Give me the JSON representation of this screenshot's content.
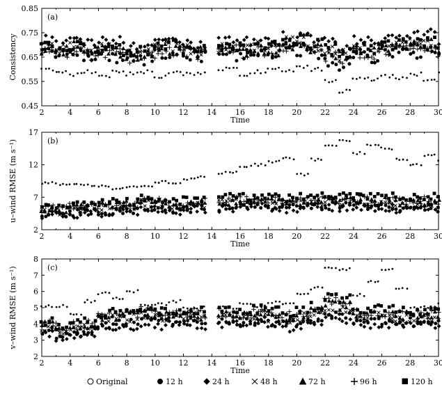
{
  "legend": [
    {
      "label": "Original",
      "marker": "open-circle"
    },
    {
      "label": "12 h",
      "marker": "filled-circle"
    },
    {
      "label": "24 h",
      "marker": "diamond"
    },
    {
      "label": "48 h",
      "marker": "x"
    },
    {
      "label": "72 h",
      "marker": "triangle"
    },
    {
      "label": "96 h",
      "marker": "plus"
    },
    {
      "label": "120 h",
      "marker": "square"
    }
  ],
  "chart_data": [
    {
      "type": "scatter",
      "panel": "(a)",
      "xlabel": "Time",
      "ylabel": "Consistency",
      "xlim": [
        2,
        30
      ],
      "ylim": [
        0.45,
        0.85
      ],
      "xticks": [
        2,
        4,
        6,
        8,
        10,
        12,
        14,
        16,
        18,
        20,
        22,
        24,
        26,
        28,
        30
      ],
      "yticks": [
        0.45,
        0.55,
        0.65,
        0.75,
        0.85
      ],
      "ytick_labels": [
        "0.45",
        "0.55",
        "0.65",
        "0.75",
        "0.85"
      ],
      "gap": [
        13.5,
        14.5
      ],
      "series_levels": {
        "original": [
          0.6,
          0.59,
          0.58,
          0.59,
          0.57,
          0.59,
          0.58,
          0.59,
          0.57,
          0.59,
          0.58,
          0.58,
          0.59,
          0.6,
          0.58,
          0.59,
          0.6,
          0.59,
          0.61,
          0.6,
          0.55,
          0.51,
          0.56,
          0.56,
          0.57,
          0.56,
          0.58,
          0.56,
          0.58
        ],
        "h12": [
          0.67,
          0.66,
          0.67,
          0.65,
          0.66,
          0.65,
          0.64,
          0.64,
          0.66,
          0.67,
          0.65,
          0.65,
          0.66,
          0.66,
          0.66,
          0.66,
          0.67,
          0.69,
          0.68,
          0.66,
          0.63,
          0.62,
          0.66,
          0.65,
          0.67,
          0.67,
          0.67,
          0.68,
          0.67
        ],
        "h24": [
          0.72,
          0.71,
          0.72,
          0.71,
          0.72,
          0.71,
          0.7,
          0.7,
          0.71,
          0.72,
          0.71,
          0.7,
          0.71,
          0.73,
          0.72,
          0.72,
          0.72,
          0.73,
          0.74,
          0.73,
          0.71,
          0.7,
          0.72,
          0.71,
          0.73,
          0.72,
          0.74,
          0.74,
          0.72
        ],
        "h48": [
          0.69,
          0.68,
          0.7,
          0.68,
          0.69,
          0.68,
          0.67,
          0.67,
          0.69,
          0.69,
          0.68,
          0.68,
          0.69,
          0.7,
          0.69,
          0.69,
          0.69,
          0.71,
          0.71,
          0.7,
          0.67,
          0.66,
          0.69,
          0.68,
          0.7,
          0.7,
          0.7,
          0.71,
          0.69
        ],
        "h72": [
          0.68,
          0.67,
          0.69,
          0.67,
          0.68,
          0.67,
          0.66,
          0.66,
          0.68,
          0.68,
          0.67,
          0.67,
          0.68,
          0.69,
          0.68,
          0.68,
          0.68,
          0.7,
          0.7,
          0.69,
          0.66,
          0.65,
          0.68,
          0.67,
          0.69,
          0.69,
          0.69,
          0.7,
          0.68
        ],
        "h96": [
          0.67,
          0.67,
          0.68,
          0.66,
          0.67,
          0.66,
          0.65,
          0.65,
          0.67,
          0.67,
          0.66,
          0.66,
          0.67,
          0.68,
          0.67,
          0.67,
          0.67,
          0.69,
          0.69,
          0.68,
          0.65,
          0.64,
          0.67,
          0.66,
          0.68,
          0.68,
          0.68,
          0.69,
          0.67
        ],
        "h120": [
          0.7,
          0.69,
          0.7,
          0.68,
          0.69,
          0.68,
          0.68,
          0.67,
          0.69,
          0.7,
          0.68,
          0.68,
          0.69,
          0.7,
          0.69,
          0.69,
          0.7,
          0.71,
          0.72,
          0.7,
          0.68,
          0.67,
          0.69,
          0.68,
          0.7,
          0.7,
          0.71,
          0.71,
          0.7
        ]
      },
      "spread": 0.025
    },
    {
      "type": "scatter",
      "panel": "(b)",
      "xlabel": "Time",
      "ylabel": "u–wind RMSE (m s⁻¹)",
      "xlim": [
        2,
        30
      ],
      "ylim": [
        2,
        17
      ],
      "xticks": [
        2,
        4,
        6,
        8,
        10,
        12,
        14,
        16,
        18,
        20,
        22,
        24,
        26,
        28,
        30
      ],
      "yticks": [
        2,
        7,
        12,
        17
      ],
      "ytick_labels": [
        "2",
        "7",
        "12",
        "17"
      ],
      "gap": [
        13.5,
        14.5
      ],
      "series_levels": {
        "original": [
          9.2,
          9.0,
          9.1,
          8.8,
          8.7,
          8.3,
          8.6,
          8.8,
          9.4,
          9.0,
          9.8,
          10.2,
          10.5,
          10.8,
          11.8,
          12.0,
          12.5,
          13.0,
          10.5,
          12.8,
          15.0,
          15.8,
          13.8,
          15.0,
          14.5,
          12.8,
          12.0,
          13.5,
          12.5
        ],
        "h12": [
          4.5,
          4.3,
          4.6,
          4.9,
          4.8,
          4.9,
          5.0,
          5.5,
          5.3,
          5.0,
          5.2,
          5.3,
          5.5,
          5.5,
          5.5,
          5.8,
          5.4,
          5.3,
          5.5,
          5.6,
          5.7,
          5.6,
          5.6,
          5.5,
          5.6,
          5.3,
          5.4,
          5.6,
          5.3
        ],
        "h24": [
          4.3,
          4.2,
          4.4,
          4.7,
          4.6,
          4.7,
          4.8,
          5.3,
          5.1,
          4.8,
          5.0,
          5.1,
          5.3,
          5.3,
          5.3,
          5.6,
          5.2,
          5.1,
          5.3,
          5.4,
          5.5,
          5.4,
          5.4,
          5.3,
          5.4,
          5.1,
          5.2,
          5.4,
          5.1
        ],
        "h48": [
          5.0,
          4.8,
          5.1,
          5.5,
          5.4,
          5.5,
          5.6,
          6.1,
          5.9,
          5.6,
          5.8,
          5.9,
          6.1,
          6.1,
          6.1,
          6.4,
          6.0,
          5.9,
          6.1,
          6.2,
          6.3,
          6.2,
          6.2,
          6.1,
          6.2,
          5.9,
          6.0,
          6.2,
          5.9
        ],
        "h72": [
          5.2,
          5.0,
          5.3,
          5.7,
          5.6,
          5.7,
          5.8,
          6.3,
          6.1,
          5.8,
          6.0,
          6.1,
          6.3,
          6.3,
          6.3,
          6.6,
          6.2,
          6.1,
          6.3,
          6.4,
          6.5,
          6.4,
          6.4,
          6.3,
          6.4,
          6.1,
          6.2,
          6.4,
          6.1
        ],
        "h96": [
          5.4,
          5.2,
          5.5,
          5.9,
          5.8,
          5.9,
          6.0,
          6.5,
          6.3,
          6.0,
          6.2,
          6.3,
          6.5,
          6.5,
          6.5,
          6.8,
          6.4,
          6.3,
          6.5,
          6.6,
          6.7,
          6.6,
          6.6,
          6.5,
          6.6,
          6.3,
          6.4,
          6.6,
          6.3
        ],
        "h120": [
          5.6,
          5.4,
          5.7,
          6.2,
          6.1,
          6.2,
          6.3,
          6.9,
          6.7,
          6.4,
          6.6,
          6.8,
          7.0,
          7.0,
          7.0,
          7.3,
          6.9,
          6.8,
          7.0,
          7.1,
          7.2,
          7.1,
          7.1,
          7.0,
          7.1,
          6.8,
          6.9,
          7.1,
          6.8
        ]
      },
      "spread": 0.6
    },
    {
      "type": "scatter",
      "panel": "(c)",
      "xlabel": "Time",
      "ylabel": "v–wind RMSE (m s⁻¹)",
      "xlim": [
        2,
        30
      ],
      "ylim": [
        2,
        8
      ],
      "xticks": [
        2,
        4,
        6,
        8,
        10,
        12,
        14,
        16,
        18,
        20,
        22,
        24,
        26,
        28,
        30
      ],
      "yticks": [
        2,
        3,
        4,
        5,
        6,
        7,
        8
      ],
      "ytick_labels": [
        "2",
        "3",
        "4",
        "5",
        "6",
        "7",
        "8"
      ],
      "gap": [
        13.5,
        14.5
      ],
      "series_levels": {
        "original": [
          5.1,
          5.1,
          4.6,
          5.4,
          5.9,
          5.6,
          6.0,
          5.2,
          5.2,
          5.4,
          5.0,
          5.0,
          5.0,
          5.0,
          5.3,
          5.1,
          5.3,
          5.3,
          5.8,
          6.2,
          7.4,
          7.4,
          5.8,
          6.6,
          7.4,
          6.2,
          5.0,
          5.0,
          5.2
        ],
        "h12": [
          3.5,
          3.3,
          3.4,
          3.5,
          4.0,
          4.0,
          4.1,
          4.3,
          4.1,
          4.1,
          4.2,
          4.1,
          4.2,
          4.2,
          4.1,
          4.2,
          4.1,
          4.0,
          4.1,
          4.3,
          4.5,
          4.4,
          4.2,
          4.2,
          4.2,
          4.1,
          4.1,
          4.1,
          4.1
        ],
        "h24": [
          3.4,
          3.2,
          3.3,
          3.4,
          3.8,
          3.8,
          3.9,
          4.1,
          3.9,
          3.9,
          4.0,
          3.9,
          4.0,
          4.0,
          3.9,
          4.0,
          3.9,
          3.8,
          3.9,
          4.1,
          4.3,
          4.2,
          4.0,
          4.0,
          4.0,
          3.9,
          3.9,
          3.9,
          3.9
        ],
        "h48": [
          3.8,
          3.6,
          3.7,
          3.8,
          4.3,
          4.3,
          4.4,
          4.6,
          4.4,
          4.4,
          4.5,
          4.4,
          4.5,
          4.5,
          4.4,
          4.5,
          4.4,
          4.3,
          4.4,
          4.7,
          5.0,
          4.9,
          4.5,
          4.5,
          4.5,
          4.4,
          4.4,
          4.4,
          4.4
        ],
        "h72": [
          3.9,
          3.7,
          3.8,
          3.9,
          4.4,
          4.4,
          4.5,
          4.7,
          4.5,
          4.5,
          4.6,
          4.5,
          4.6,
          4.6,
          4.5,
          4.6,
          4.5,
          4.4,
          4.5,
          4.8,
          5.2,
          5.1,
          4.6,
          4.6,
          4.6,
          4.5,
          4.5,
          4.5,
          4.5
        ],
        "h96": [
          4.0,
          3.8,
          3.9,
          4.0,
          4.5,
          4.5,
          4.6,
          4.8,
          4.6,
          4.6,
          4.7,
          4.6,
          4.7,
          4.7,
          4.6,
          4.7,
          4.6,
          4.5,
          4.6,
          4.9,
          5.4,
          5.3,
          4.7,
          4.7,
          4.7,
          4.6,
          4.6,
          4.6,
          4.6
        ],
        "h120": [
          4.1,
          3.9,
          4.0,
          4.1,
          4.6,
          4.7,
          4.8,
          5.0,
          4.8,
          4.8,
          4.9,
          4.8,
          4.9,
          4.9,
          4.8,
          4.9,
          4.8,
          4.7,
          4.8,
          5.1,
          5.6,
          5.5,
          4.9,
          4.9,
          4.9,
          4.8,
          4.8,
          4.8,
          4.8
        ]
      },
      "spread": 0.28
    }
  ]
}
